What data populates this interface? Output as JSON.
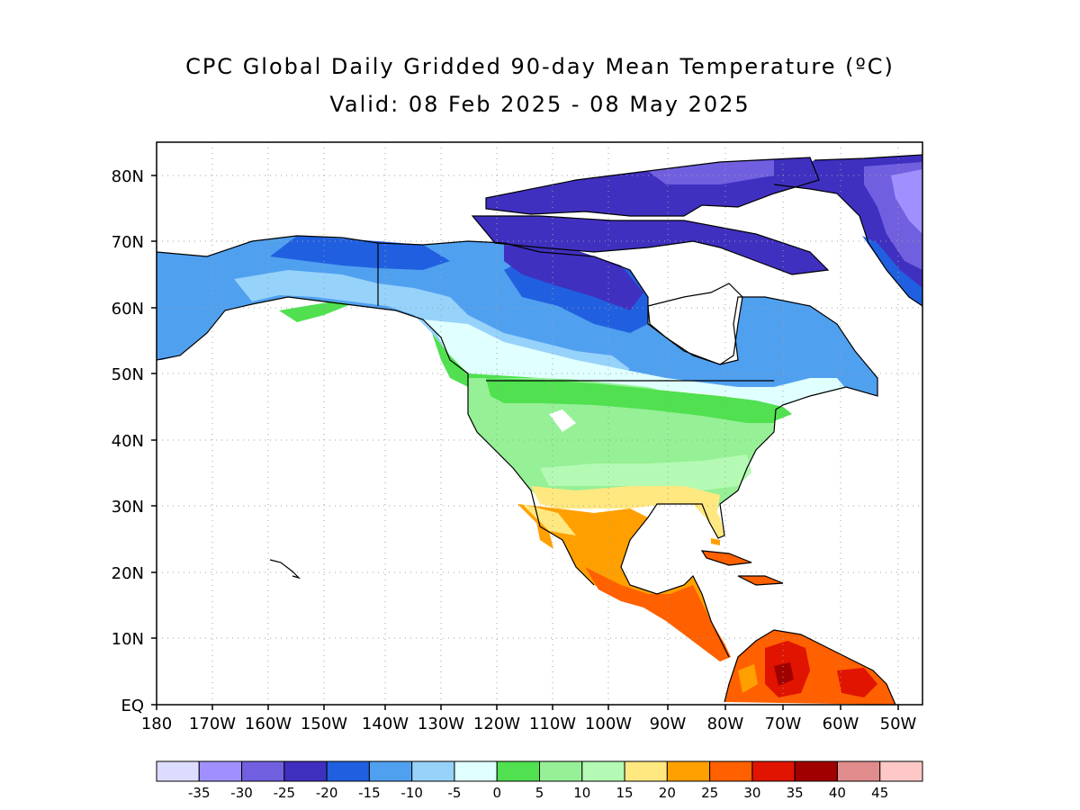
{
  "title": "CPC Global Daily Gridded 90-day Mean Temperature (ºC)",
  "subtitle": "Valid: 08 Feb 2025 - 08 May 2025",
  "axes": {
    "lat_labels": [
      "80N",
      "70N",
      "60N",
      "50N",
      "40N",
      "30N",
      "20N",
      "10N",
      "EQ"
    ],
    "lon_labels": [
      "180",
      "170W",
      "160W",
      "150W",
      "140W",
      "130W",
      "120W",
      "110W",
      "100W",
      "90W",
      "80W",
      "70W",
      "60W",
      "50W"
    ]
  },
  "colorbar": {
    "colors": [
      "#dcdcff",
      "#a090ff",
      "#7060e0",
      "#4030c0",
      "#2060e0",
      "#50a0f0",
      "#96d2fa",
      "#e0ffff",
      "#50e050",
      "#96f096",
      "#b4fab4",
      "#ffe880",
      "#ffa000",
      "#ff6000",
      "#e01400",
      "#a00000",
      "#e08c8c",
      "#ffc8c8"
    ],
    "tick_labels": [
      "-35",
      "-30",
      "-25",
      "-20",
      "-15",
      "-10",
      "-5",
      "0",
      "5",
      "10",
      "15",
      "20",
      "25",
      "30",
      "35",
      "40",
      "45"
    ]
  }
}
